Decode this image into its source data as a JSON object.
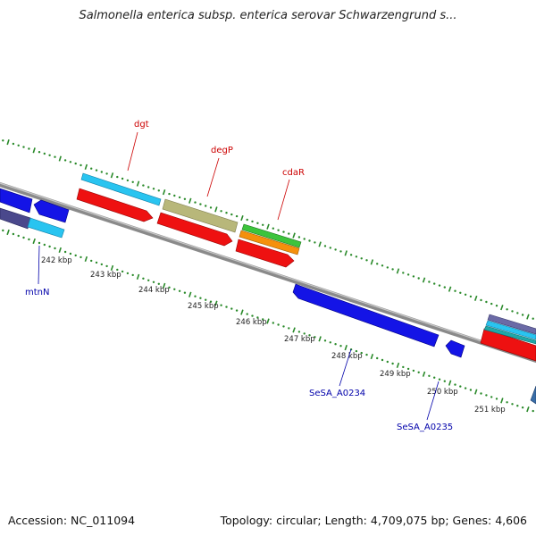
{
  "title": "Salmonella enterica subsp. enterica serovar Schwarzengrund s...",
  "footer": {
    "accession": "Accession: NC_011094",
    "summary": "Topology: circular; Length: 4,709,075 bp; Genes: 4,606"
  },
  "colors": {
    "backbone": "#8a8a8a",
    "dotted_ring": "#2a8a2a",
    "label_forward": "#cc0000",
    "label_reverse": "#0000aa"
  },
  "scale_ticks": [
    "242 kbp",
    "243 kbp",
    "244 kbp",
    "245 kbp",
    "246 kbp",
    "247 kbp",
    "248 kbp",
    "249 kbp",
    "250 kbp",
    "251 kbp"
  ],
  "gene_labels": [
    {
      "text": "dgt",
      "strand": "forward"
    },
    {
      "text": "degP",
      "strand": "forward"
    },
    {
      "text": "cdaR",
      "strand": "forward"
    },
    {
      "text": "mtnN",
      "strand": "reverse"
    },
    {
      "text": "SeSA_A0234",
      "strand": "reverse"
    },
    {
      "text": "SeSA_A0235",
      "strand": "reverse"
    }
  ]
}
